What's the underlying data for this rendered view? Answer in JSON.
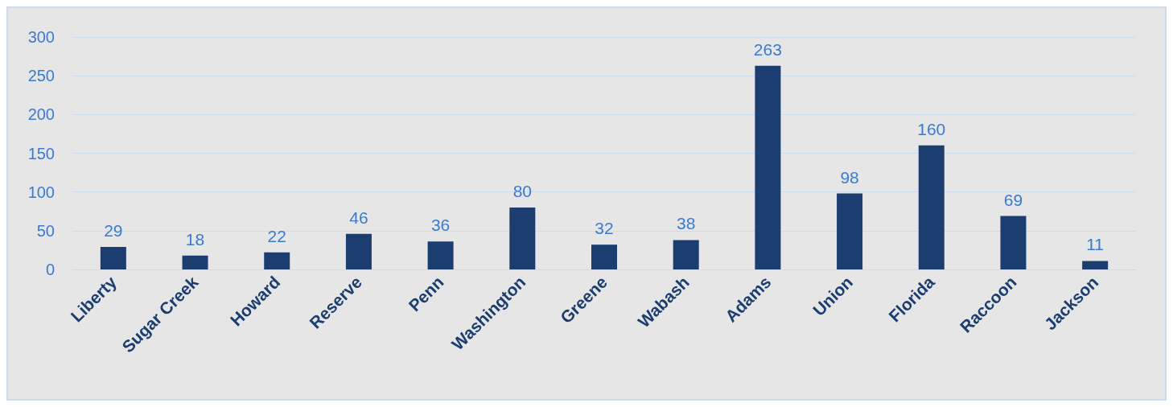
{
  "chart_data": {
    "type": "bar",
    "categories": [
      "Liberty",
      "Sugar Creek",
      "Howard",
      "Reserve",
      "Penn",
      "Washington",
      "Greene",
      "Wabash",
      "Adams",
      "Union",
      "Florida",
      "Raccoon",
      "Jackson"
    ],
    "values": [
      29,
      18,
      22,
      46,
      36,
      80,
      32,
      38,
      263,
      98,
      160,
      69,
      11
    ],
    "color": "#1b3d6f",
    "ylim": [
      0,
      300
    ],
    "yticks": [
      0,
      50,
      100,
      150,
      200,
      250,
      300
    ],
    "grid": "y",
    "data_labels": true
  }
}
